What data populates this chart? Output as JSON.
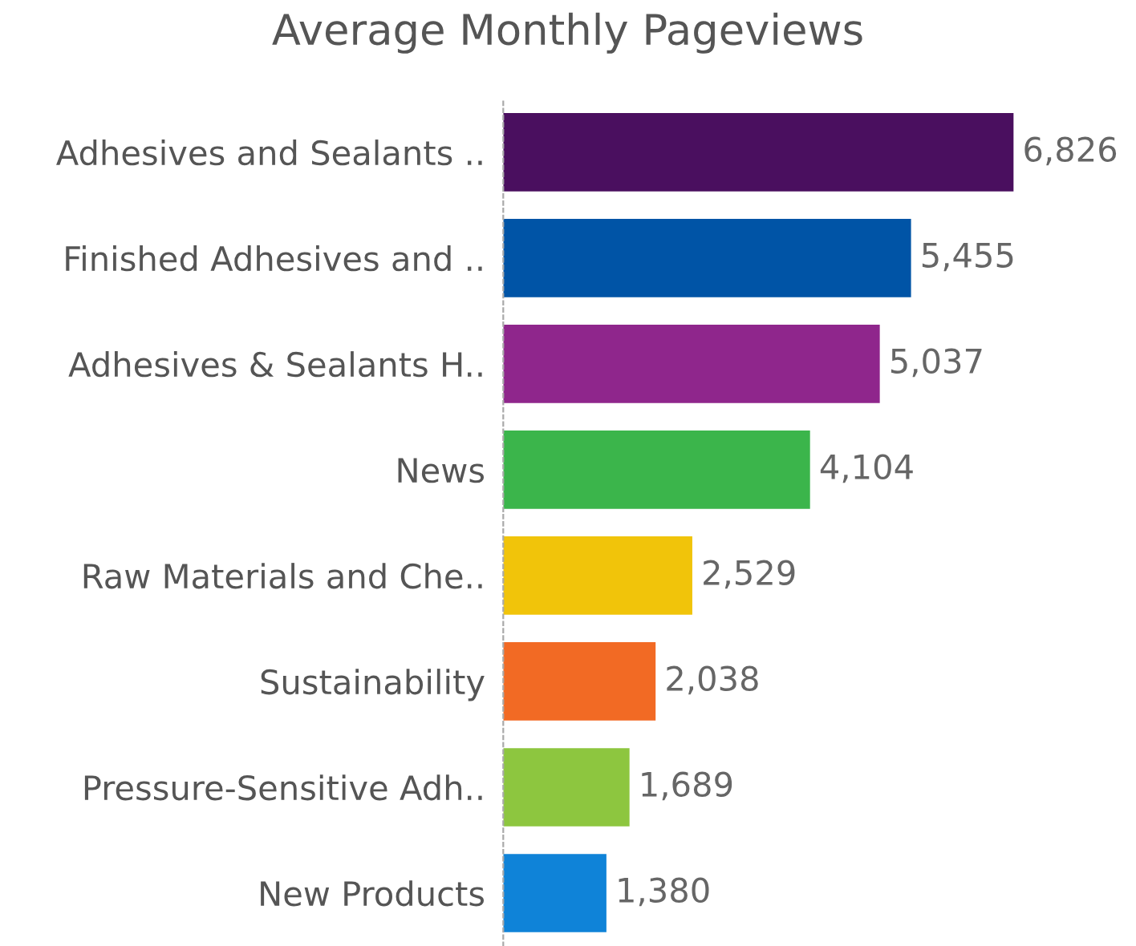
{
  "chart_data": {
    "type": "bar",
    "orientation": "horizontal",
    "title": "Average Monthly Pageviews",
    "categories": [
      "Adhesives and Sealants ..",
      "Finished Adhesives and ..",
      "Adhesives & Sealants H..",
      "News",
      "Raw Materials and Che..",
      "Sustainability",
      "Pressure-Sensitive Adh..",
      "New Products"
    ],
    "values": [
      6826,
      5455,
      5037,
      4104,
      2529,
      2038,
      1689,
      1380
    ],
    "colors": [
      "#4a0f5f",
      "#0054a6",
      "#8f268c",
      "#3bb54b",
      "#f1c40a",
      "#f26a24",
      "#8dc63f",
      "#0f83d8"
    ],
    "value_labels": [
      "6,826",
      "5,455",
      "5,037",
      "4,104",
      "2,529",
      "2,038",
      "1,689",
      "1,380"
    ],
    "grid": false,
    "legend": false
  }
}
